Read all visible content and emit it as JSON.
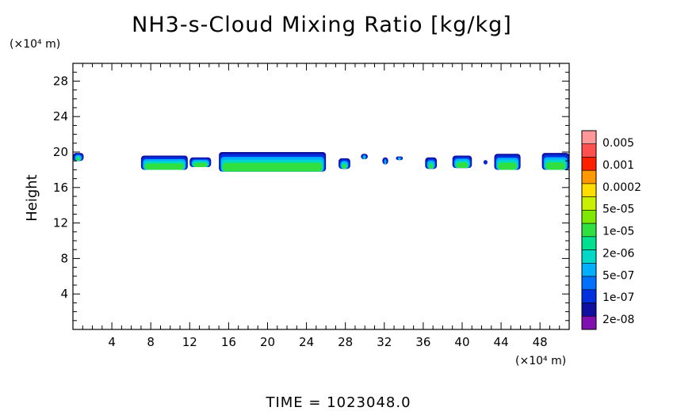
{
  "chart_data": {
    "type": "heatmap",
    "title": "NH3-s-Cloud Mixing Ratio [kg/kg]",
    "ylabel": "Height",
    "y_unit": "(×10⁴ m)",
    "x_unit": "(×10⁴ m)",
    "xlim": [
      0,
      51
    ],
    "ylim": [
      0,
      30
    ],
    "x_ticks": [
      "4",
      "8",
      "12",
      "16",
      "20",
      "24",
      "28",
      "32",
      "36",
      "40",
      "44",
      "48"
    ],
    "y_ticks": [
      "4",
      "8",
      "12",
      "16",
      "20",
      "24",
      "28"
    ],
    "colorbar": {
      "labels": [
        "0.005",
        "0.001",
        "0.0002",
        "5e-05",
        "1e-05",
        "2e-06",
        "5e-07",
        "1e-07",
        "2e-08"
      ],
      "colors": [
        "#ff9999",
        "#ff5050",
        "#ff2000",
        "#ff9900",
        "#ffdd00",
        "#c8f000",
        "#80e800",
        "#30e040",
        "#00e090",
        "#00d8c8",
        "#00b0ff",
        "#0070ff",
        "#0030e0",
        "#1010a0",
        "#8010b0"
      ]
    },
    "cloud_patches": [
      {
        "x0": 0.0,
        "x1": 1.1,
        "y0": 19.0,
        "y1": 19.9
      },
      {
        "x0": 7.0,
        "x1": 11.8,
        "y0": 18.0,
        "y1": 19.6
      },
      {
        "x0": 12.0,
        "x1": 14.2,
        "y0": 18.3,
        "y1": 19.4
      },
      {
        "x0": 15.0,
        "x1": 26.0,
        "y0": 17.8,
        "y1": 20.0
      },
      {
        "x0": 27.3,
        "x1": 28.5,
        "y0": 18.1,
        "y1": 19.3
      },
      {
        "x0": 29.6,
        "x1": 30.3,
        "y0": 19.2,
        "y1": 19.8
      },
      {
        "x0": 31.8,
        "x1": 32.4,
        "y0": 18.6,
        "y1": 19.4
      },
      {
        "x0": 33.2,
        "x1": 33.9,
        "y0": 19.1,
        "y1": 19.5
      },
      {
        "x0": 36.2,
        "x1": 37.4,
        "y0": 18.1,
        "y1": 19.4
      },
      {
        "x0": 39.0,
        "x1": 41.0,
        "y0": 18.2,
        "y1": 19.6
      },
      {
        "x0": 42.2,
        "x1": 42.6,
        "y0": 18.6,
        "y1": 19.1
      },
      {
        "x0": 43.3,
        "x1": 46.0,
        "y0": 18.0,
        "y1": 19.8
      },
      {
        "x0": 48.2,
        "x1": 51.0,
        "y0": 18.0,
        "y1": 19.9
      }
    ]
  },
  "footer": {
    "time_label": "TIME  =  1023048.0"
  }
}
